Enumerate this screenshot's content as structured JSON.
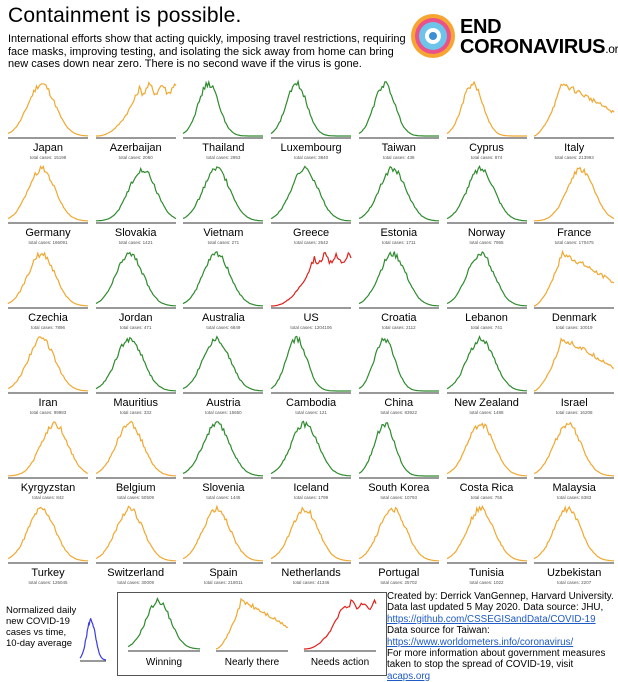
{
  "header": {
    "title": "Containment is possible.",
    "subtitle": "International efforts show that acting quickly, imposing travel restrictions, requiring face masks, improving testing, and isolating the sick away from home can bring new cases down near zero. There is no second wave if the virus is gone."
  },
  "logo": {
    "line1": "END",
    "line2": "CORONAVIRUS",
    "suffix": ".org"
  },
  "colors": {
    "winning": "#2e8b2e",
    "nearly": "#f0a830",
    "action": "#e0201b",
    "normalized": "#3a3ae6"
  },
  "chart_data": {
    "type": "line",
    "grid": false,
    "panels": [
      {
        "name": "Japan",
        "total": "total cases: 15198",
        "status": "nearly",
        "shape": "mid"
      },
      {
        "name": "Azerbaijan",
        "total": "total cases: 2060",
        "status": "nearly",
        "shape": "rise"
      },
      {
        "name": "Thailand",
        "total": "total cases: 2953",
        "status": "winning",
        "shape": "early"
      },
      {
        "name": "Luxembourg",
        "total": "total cases: 3840",
        "status": "winning",
        "shape": "early"
      },
      {
        "name": "Taiwan",
        "total": "total cases: 438",
        "status": "winning",
        "shape": "early"
      },
      {
        "name": "Cyprus",
        "total": "total cases: 874",
        "status": "nearly",
        "shape": "early"
      },
      {
        "name": "Italy",
        "total": "total cases: 213993",
        "status": "nearly",
        "shape": "plateau"
      },
      {
        "name": "Germany",
        "total": "total cases: 166091",
        "status": "nearly",
        "shape": "mid"
      },
      {
        "name": "Slovakia",
        "total": "total cases: 1421",
        "status": "winning",
        "shape": "late"
      },
      {
        "name": "Vietnam",
        "total": "total cases: 271",
        "status": "winning",
        "shape": "mid"
      },
      {
        "name": "Greece",
        "total": "total cases: 2642",
        "status": "winning",
        "shape": "mid"
      },
      {
        "name": "Estonia",
        "total": "total cases: 1711",
        "status": "winning",
        "shape": "mid"
      },
      {
        "name": "Norway",
        "total": "total cases: 7955",
        "status": "winning",
        "shape": "mid"
      },
      {
        "name": "France",
        "total": "total cases: 170475",
        "status": "nearly",
        "shape": "late"
      },
      {
        "name": "Czechia",
        "total": "total cases: 7896",
        "status": "nearly",
        "shape": "mid"
      },
      {
        "name": "Jordan",
        "total": "total cases: 471",
        "status": "winning",
        "shape": "mid"
      },
      {
        "name": "Australia",
        "total": "total cases: 6849",
        "status": "winning",
        "shape": "mid"
      },
      {
        "name": "US",
        "total": "total cases: 1204106",
        "status": "action",
        "shape": "rise"
      },
      {
        "name": "Croatia",
        "total": "total cases: 2112",
        "status": "winning",
        "shape": "mid"
      },
      {
        "name": "Lebanon",
        "total": "total cases: 741",
        "status": "winning",
        "shape": "mid"
      },
      {
        "name": "Denmark",
        "total": "total cases: 10019",
        "status": "nearly",
        "shape": "plateau"
      },
      {
        "name": "Iran",
        "total": "total cases: 99983",
        "status": "nearly",
        "shape": "mid"
      },
      {
        "name": "Mauritius",
        "total": "total cases: 332",
        "status": "winning",
        "shape": "mid"
      },
      {
        "name": "Austria",
        "total": "total cases: 15650",
        "status": "winning",
        "shape": "mid"
      },
      {
        "name": "Cambodia",
        "total": "total cases: 121",
        "status": "winning",
        "shape": "early"
      },
      {
        "name": "China",
        "total": "total cases: 83922",
        "status": "winning",
        "shape": "early"
      },
      {
        "name": "New Zealand",
        "total": "total cases: 1488",
        "status": "winning",
        "shape": "mid"
      },
      {
        "name": "Israel",
        "total": "total cases: 16208",
        "status": "nearly",
        "shape": "plateau"
      },
      {
        "name": "Kyrgyzstan",
        "total": "total cases: 842",
        "status": "nearly",
        "shape": "late"
      },
      {
        "name": "Belgium",
        "total": "total cases: 50509",
        "status": "nearly",
        "shape": "mid"
      },
      {
        "name": "Slovenia",
        "total": "total cases: 1445",
        "status": "winning",
        "shape": "mid"
      },
      {
        "name": "Iceland",
        "total": "total cases: 1799",
        "status": "winning",
        "shape": "mid"
      },
      {
        "name": "South Korea",
        "total": "total cases: 10793",
        "status": "winning",
        "shape": "early"
      },
      {
        "name": "Costa Rica",
        "total": "total cases: 755",
        "status": "nearly",
        "shape": "mid"
      },
      {
        "name": "Malaysia",
        "total": "total cases: 6383",
        "status": "nearly",
        "shape": "mid"
      },
      {
        "name": "Turkey",
        "total": "total cases: 126045",
        "status": "nearly",
        "shape": "mid"
      },
      {
        "name": "Switzerland",
        "total": "total cases: 30009",
        "status": "nearly",
        "shape": "mid"
      },
      {
        "name": "Spain",
        "total": "total cases: 218011",
        "status": "nearly",
        "shape": "mid"
      },
      {
        "name": "Netherlands",
        "total": "total cases: 41346",
        "status": "nearly",
        "shape": "mid"
      },
      {
        "name": "Portugal",
        "total": "total cases: 25702",
        "status": "nearly",
        "shape": "mid"
      },
      {
        "name": "Tunisia",
        "total": "total cases: 1022",
        "status": "nearly",
        "shape": "mid"
      },
      {
        "name": "Uzbekistan",
        "total": "total cases: 2207",
        "status": "nearly",
        "shape": "mid"
      }
    ]
  },
  "normalized_label": "Normalized daily new COVID-19 cases vs time, 10-day average",
  "legend": {
    "winning": "Winning",
    "nearly": "Nearly there",
    "action": "Needs action"
  },
  "credits": {
    "line1": "Created by: Derrick VanGennep, Harvard University.",
    "line2": "Data last updated 5 May 2020. Data source: JHU,",
    "link1": "https://github.com/CSSEGISandData/COVID-19",
    "line3": "Data source for Taiwan:",
    "link2": "https://www.worldometers.info/coronavirus/",
    "line4": "For more information about government measures taken to stop the spread of COVID-19, visit",
    "link3": "acaps.org"
  }
}
